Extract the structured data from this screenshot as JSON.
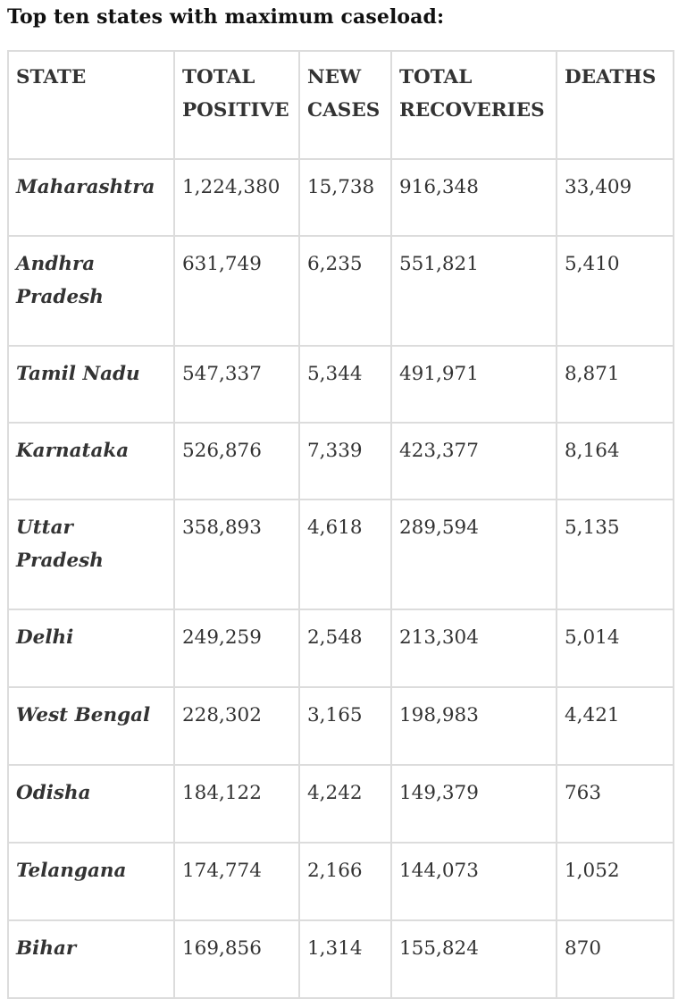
{
  "heading": "Top ten states with maximum caseload:",
  "table": {
    "headers": [
      "STATE",
      "TOTAL POSITIVE",
      "NEW CASES",
      "TOTAL RECOVERIES",
      "DEATHS"
    ],
    "rows": [
      {
        "state": "Maharashtra",
        "total_positive": "1,224,380",
        "new_cases": "15,738",
        "total_recoveries": "916,348",
        "deaths": "33,409"
      },
      {
        "state": "Andhra Pradesh",
        "total_positive": "631,749",
        "new_cases": "6,235",
        "total_recoveries": "551,821",
        "deaths": "5,410"
      },
      {
        "state": "Tamil Nadu",
        "total_positive": "547,337",
        "new_cases": "5,344",
        "total_recoveries": "491,971",
        "deaths": "8,871"
      },
      {
        "state": "Karnataka",
        "total_positive": "526,876",
        "new_cases": "7,339",
        "total_recoveries": "423,377",
        "deaths": "8,164"
      },
      {
        "state": "Uttar Pradesh",
        "total_positive": "358,893",
        "new_cases": "4,618",
        "total_recoveries": "289,594",
        "deaths": "5,135"
      },
      {
        "state": "Delhi",
        "total_positive": "249,259",
        "new_cases": "2,548",
        "total_recoveries": "213,304",
        "deaths": "5,014"
      },
      {
        "state": "West Bengal",
        "total_positive": "228,302",
        "new_cases": "3,165",
        "total_recoveries": "198,983",
        "deaths": "4,421"
      },
      {
        "state": "Odisha",
        "total_positive": "184,122",
        "new_cases": "4,242",
        "total_recoveries": "149,379",
        "deaths": "763"
      },
      {
        "state": "Telangana",
        "total_positive": "174,774",
        "new_cases": "2,166",
        "total_recoveries": "144,073",
        "deaths": "1,052"
      },
      {
        "state": "Bihar",
        "total_positive": "169,856",
        "new_cases": "1,314",
        "total_recoveries": "155,824",
        "deaths": "870"
      }
    ]
  }
}
